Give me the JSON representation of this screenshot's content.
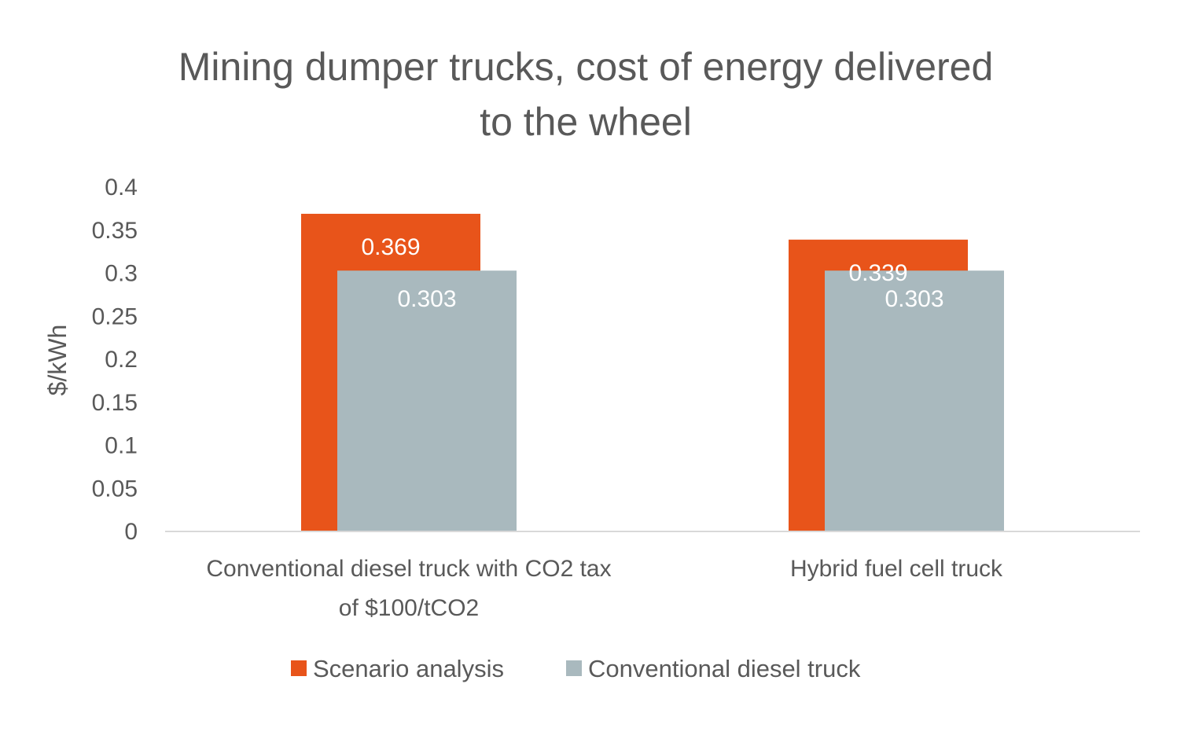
{
  "chart_data": {
    "type": "bar",
    "title_lines": [
      "Mining dumper trucks, cost of energy delivered",
      "to the wheel"
    ],
    "ylabel": "$/kWh",
    "xlabel": "",
    "ylim": [
      0,
      0.4
    ],
    "yticks": [
      "0",
      "0.05",
      "0.1",
      "0.15",
      "0.2",
      "0.25",
      "0.3",
      "0.35",
      "0.4"
    ],
    "grid": false,
    "legend_position": "bottom",
    "overlap_bars": true,
    "categories": [
      [
        "Conventional diesel truck with CO2 tax",
        "of $100/tCO2"
      ],
      [
        "Hybrid fuel cell truck"
      ]
    ],
    "series": [
      {
        "name": "Scenario analysis",
        "color": "#e8541a",
        "values": [
          0.369,
          0.339
        ],
        "labels": [
          "0.369",
          "0.339"
        ]
      },
      {
        "name": "Conventional diesel truck",
        "color": "#a9b9be",
        "values": [
          0.303,
          0.303
        ],
        "labels": [
          "0.303",
          "0.303"
        ]
      }
    ]
  }
}
